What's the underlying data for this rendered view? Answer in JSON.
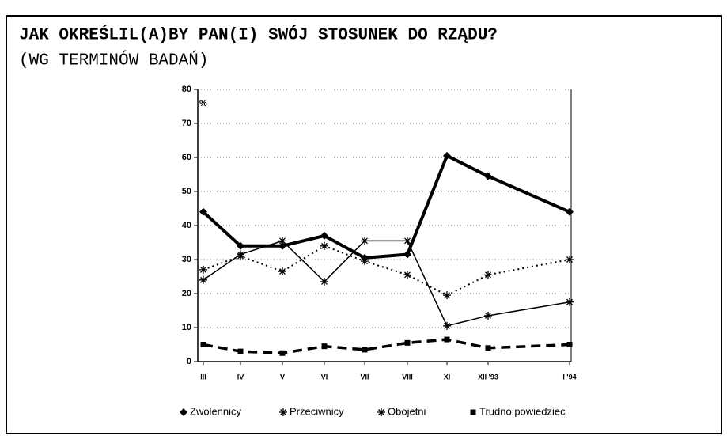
{
  "chart_data": {
    "type": "line",
    "title": "JAK OKREŚLIL(A)BY PAN(I) SWÓJ STOSUNEK DO RZĄDU?",
    "subtitle": "(WG TERMINÓW BADAŃ)",
    "y_label": "%",
    "categories": [
      "III",
      "IV",
      "V",
      "VI",
      "VII",
      "VIII",
      "XI",
      "XII '93",
      "I '94"
    ],
    "series": [
      {
        "name": "Zwolennicy",
        "color": "#000000",
        "line_style": "thick",
        "marker": "diamond",
        "values": [
          44,
          34,
          34,
          37,
          30.5,
          31.5,
          60.5,
          54.5,
          44
        ]
      },
      {
        "name": "Przeciwnicy",
        "color": "#000000",
        "line_style": "solid",
        "marker": "asterisk",
        "values": [
          24,
          31.5,
          35.5,
          23.5,
          35.5,
          35.5,
          10.5,
          13.5,
          17.5
        ]
      },
      {
        "name": "Obojetni",
        "color": "#000000",
        "line_style": "dotted",
        "marker": "asterisk",
        "values": [
          27,
          31,
          26.5,
          34,
          29.5,
          25.5,
          19.5,
          25.5,
          30
        ]
      },
      {
        "name": "Trudno powiedziec",
        "color": "#000000",
        "line_style": "dashed",
        "marker": "square",
        "values": [
          5,
          3,
          2.5,
          4.5,
          3.5,
          5.5,
          6.5,
          4,
          5
        ]
      }
    ],
    "ylim": [
      0,
      80
    ],
    "yticks": [
      0,
      10,
      20,
      30,
      40,
      50,
      60,
      70,
      80
    ],
    "grid": true,
    "legend": "bottom"
  }
}
